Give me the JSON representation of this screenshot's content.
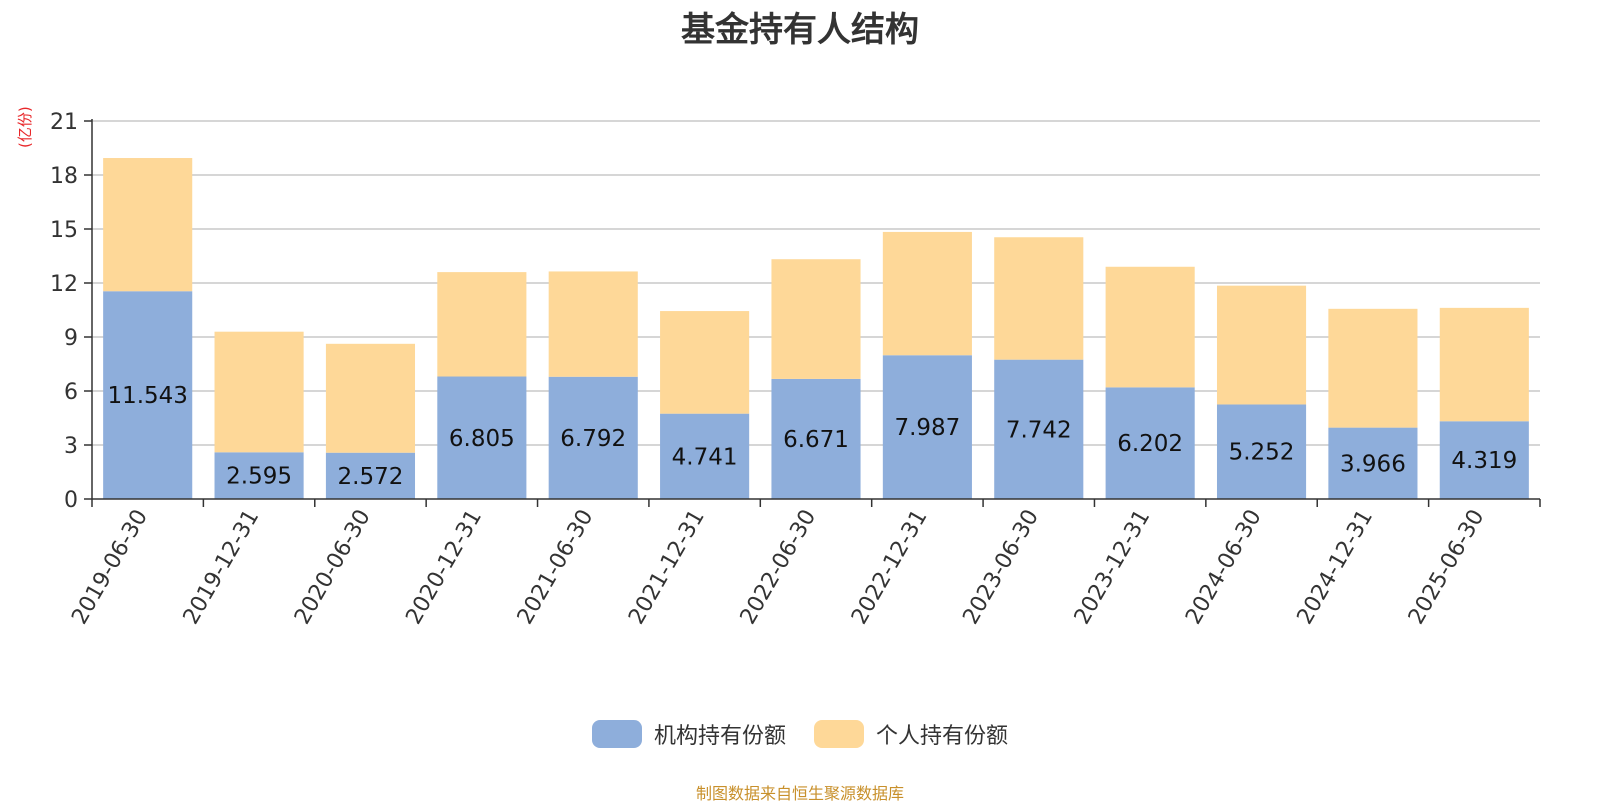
{
  "title": "基金持有人结构",
  "unit_label": "(亿份)",
  "source_note": "制图数据来自恒生聚源数据库",
  "colors": {
    "institutional": "#8eaedb",
    "individual": "#fed898",
    "grid": "#c8c8c8",
    "axis": "#333333"
  },
  "chart_data": {
    "type": "bar",
    "stacked": true,
    "ylabel": "(亿份)",
    "ylim": [
      0,
      21
    ],
    "yticks": [
      0,
      3,
      6,
      9,
      12,
      15,
      18,
      21
    ],
    "grid": true,
    "legend_position": "bottom-center",
    "categories": [
      "2019-06-30",
      "2019-12-31",
      "2020-06-30",
      "2020-12-31",
      "2021-06-30",
      "2021-12-31",
      "2022-06-30",
      "2022-12-31",
      "2023-06-30",
      "2023-12-31",
      "2024-06-30",
      "2024-12-31",
      "2025-06-30"
    ],
    "series": [
      {
        "name": "机构持有份额",
        "values": [
          11.543,
          2.595,
          2.572,
          6.805,
          6.792,
          4.741,
          6.671,
          7.987,
          7.742,
          6.202,
          5.252,
          3.966,
          4.319
        ]
      },
      {
        "name": "个人持有份额",
        "values": [
          7.4,
          6.7,
          6.05,
          5.8,
          5.85,
          5.7,
          6.65,
          6.85,
          6.8,
          6.7,
          6.6,
          6.6,
          6.3
        ]
      }
    ]
  }
}
